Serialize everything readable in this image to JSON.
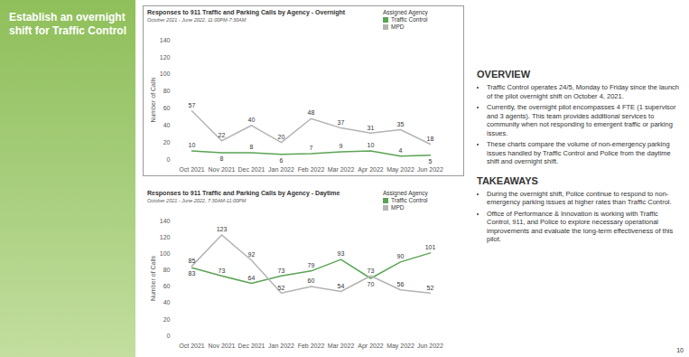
{
  "slide": {
    "title": "Establish an overnight shift for Traffic Control",
    "overview": {
      "heading": "OVERVIEW",
      "bullets": [
        "Traffic Control operates 24/5, Monday to Friday since the launch of the pilot overnight shift on October 4, 2021.",
        "Currently, the overnight pilot encompasses 4 FTE (1 supervisor and 3 agents). This team provides additional services to community when not responding to emergent traffic or parking issues.",
        "These charts compare the volume of non-emergency parking issues handled by Traffic Control and Police from the daytime shift and overnight shift."
      ]
    },
    "takeaways": {
      "heading": "TAKEAWAYS",
      "bullets": [
        "During the overnight shift, Police continue to respond to non-emergency parking issues at higher rates than Traffic Control.",
        "Office of Performance & Innovation is working with Traffic Control, 911, and Police to explore necessary operational improvements and evaluate the long-term effectiveness of this pilot."
      ]
    },
    "page_number": "10"
  },
  "chart_data": [
    {
      "type": "line",
      "title": "Responses to 911 Traffic and Parking Calls by Agency - Overnight",
      "subtitle": "October 2021 - June 2022, 11:00PM-7:30AM",
      "y_label": "Number of Calls",
      "legend_title": "Assigned Agency",
      "legend": "top-right",
      "categories": [
        "Oct 2021",
        "Nov 2021",
        "Dec 2021",
        "Jan 2022",
        "Feb 2022",
        "Mar 2022",
        "Apr 2022",
        "May 2022",
        "Jun 2022"
      ],
      "series": [
        {
          "name": "Traffic Control",
          "color": "#5aa454",
          "values": [
            10,
            8,
            8,
            6,
            7,
            9,
            10,
            4,
            5
          ]
        },
        {
          "name": "MPD",
          "color": "#b4b4b4",
          "values": [
            57,
            22,
            40,
            20,
            48,
            37,
            31,
            35,
            18
          ]
        }
      ],
      "ylim": [
        0,
        140
      ],
      "yticks": [
        0,
        20,
        40,
        60,
        80,
        100,
        120,
        140
      ],
      "grid": false,
      "data_labels": true
    },
    {
      "type": "line",
      "title": "Responses to 911 Traffic and Parking Calls by Agency - Daytime",
      "subtitle": "October 2021 - June 2022, 7:30AM-11:00PM",
      "y_label": "Number of Calls",
      "legend_title": "Assigned Agency",
      "legend": "top-right",
      "categories": [
        "Oct 2021",
        "Nov 2021",
        "Dec 2021",
        "Jan 2022",
        "Feb 2022",
        "Mar 2022",
        "Apr 2022",
        "May 2022",
        "Jun 2022"
      ],
      "series": [
        {
          "name": "Traffic Control",
          "color": "#5aa454",
          "values": [
            83,
            73,
            64,
            73,
            79,
            93,
            70,
            90,
            101
          ]
        },
        {
          "name": "MPD",
          "color": "#b4b4b4",
          "values": [
            85,
            123,
            92,
            52,
            60,
            54,
            73,
            56,
            52
          ]
        }
      ],
      "ylim": [
        0,
        140
      ],
      "yticks": [
        0,
        20,
        40,
        60,
        80,
        100,
        120,
        140
      ],
      "grid": false,
      "data_labels": true
    }
  ]
}
